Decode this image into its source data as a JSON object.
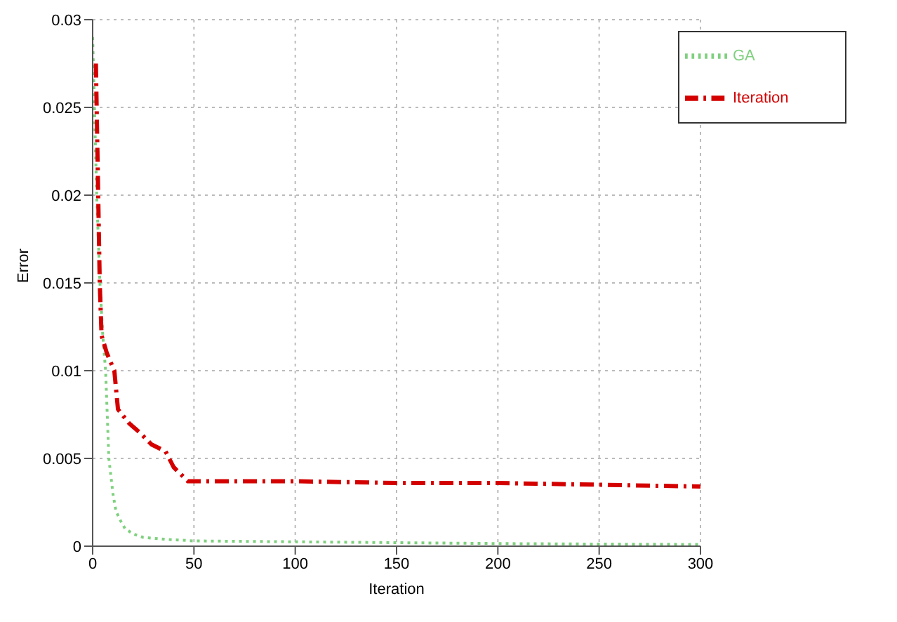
{
  "chart_data": {
    "type": "line",
    "xlabel": "Iteration",
    "ylabel": "Error",
    "xlim": [
      0,
      300
    ],
    "xticks": [
      0,
      50,
      100,
      150,
      200,
      250,
      300
    ],
    "ylim": [
      0,
      0.03
    ],
    "yticks": [
      0,
      0.005,
      0.01,
      0.015,
      0.02,
      0.025,
      0.03
    ],
    "grid": true,
    "legend": "top right",
    "marker": "none",
    "series": [
      {
        "name": "GA",
        "color": "#7fd07f",
        "line_style": "dotted",
        "x": [
          0,
          2,
          3.6,
          5,
          6.4,
          8,
          10,
          11.5,
          14,
          16,
          20,
          25,
          35,
          50,
          100,
          150,
          200,
          250,
          300
        ],
        "values": [
          0.029,
          0.02,
          0.015,
          0.012,
          0.01,
          0.005,
          0.003,
          0.002,
          0.0014,
          0.001,
          0.0007,
          0.0005,
          0.0004,
          0.0003,
          0.00025,
          0.0002,
          0.00015,
          0.00012,
          0.0001
        ]
      },
      {
        "name": "Iteration",
        "color": "#d40000",
        "line_style": "dashed",
        "x": [
          1.6,
          3.5,
          4.4,
          7,
          10.7,
          12.5,
          18,
          23,
          29,
          36,
          40,
          47,
          100,
          150,
          200,
          250,
          300
        ],
        "values": [
          0.0275,
          0.015,
          0.012,
          0.011,
          0.01,
          0.0078,
          0.007,
          0.0065,
          0.0058,
          0.0054,
          0.0045,
          0.0037,
          0.0037,
          0.0036,
          0.0036,
          0.0035,
          0.0034
        ]
      }
    ]
  }
}
